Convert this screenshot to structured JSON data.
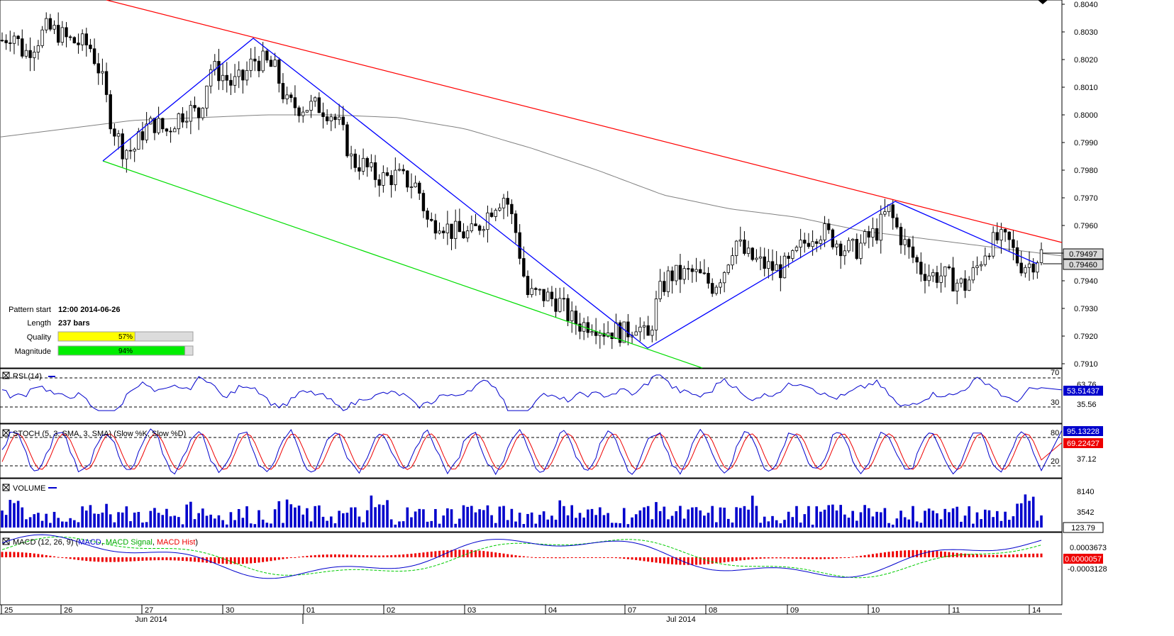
{
  "pattern_info": {
    "start_label": "Pattern start",
    "start_value": "12:00 2014-06-26",
    "length_label": "Length",
    "length_value": "237 bars",
    "quality_label": "Quality",
    "quality_value": "57%",
    "quality_pct": 57,
    "magnitude_label": "Magnitude",
    "magnitude_value": "94%",
    "magnitude_pct": 94
  },
  "colors": {
    "resistance": "#ff0000",
    "support": "#00dd00",
    "zigzag": "#0000ff",
    "sma": "#808080",
    "quality": "#ffff00",
    "magnitude": "#00ee00",
    "badge_blue": "#0000cc",
    "badge_red": "#ee0000"
  },
  "main_panel": {
    "price_labels": [
      "0.8040",
      "0.8030",
      "0.8020",
      "0.8010",
      "0.8000",
      "0.7990",
      "0.7980",
      "0.7970",
      "0.7960",
      "0.7950",
      "0.7940",
      "0.7930",
      "0.7920",
      "0.7910"
    ],
    "price_min": 0.791,
    "price_max": 0.804,
    "current_price": "0.79497",
    "secondary_price": "0.79460"
  },
  "rsi_panel": {
    "title": "RSI (14)",
    "levels": [
      "70",
      "30"
    ],
    "value_labels": [
      "63.76",
      "35.56"
    ],
    "current": "53.51437"
  },
  "stoch_panel": {
    "title": "STOCH (5, 3, SMA, 3, SMA) (Slow %K, Slow %D)",
    "levels": [
      "80",
      "20"
    ],
    "value_label": "37.12",
    "current_k": "95.13228",
    "current_d": "69.22427"
  },
  "volume_panel": {
    "title": "VOLUME",
    "value_labels": [
      "8140",
      "3542"
    ],
    "current": "123.79"
  },
  "macd_panel": {
    "title_prefix": "MACD (12, 26, 9) (",
    "macd_label": "MACD",
    "signal_label": "MACD Signal",
    "hist_label": "MACD Hist",
    "value_top": "0.0003673",
    "value_bottom": "-0.0003128",
    "current": "0.0000057"
  },
  "x_axis": {
    "day_labels": [
      "25",
      "26",
      "27",
      "30",
      "01",
      "02",
      "03",
      "04",
      "07",
      "08",
      "09",
      "10",
      "11",
      "14"
    ],
    "month_labels": [
      "Jun 2014",
      "Jul 2014"
    ]
  },
  "chart_data": {
    "type": "candlestick",
    "title": "",
    "price_range": [
      0.791,
      0.804
    ],
    "pattern": {
      "resistance_line": [
        [
          0.8042,
          "start"
        ],
        [
          0.79545,
          "end"
        ]
      ],
      "support_line": [
        [
          0.79835,
          "2014-06-26"
        ],
        [
          0.791,
          "2014-07-07"
        ]
      ],
      "zigzag_points": [
        0.79835,
        0.80275,
        0.8008,
        0.79155,
        0.7969,
        0.7948
      ]
    },
    "candles_close_trend": [
      0.8027,
      0.803,
      0.8022,
      0.8026,
      0.8031,
      0.803,
      0.8027,
      0.8026,
      0.8025,
      0.8015,
      0.7997,
      0.7988,
      0.7987,
      0.7995,
      0.7997,
      0.7994,
      0.7999,
      0.8002,
      0.8,
      0.8017,
      0.8015,
      0.8011,
      0.8013,
      0.802,
      0.8019,
      0.8016,
      0.8004,
      0.8003,
      0.8003,
      0.8003,
      0.8001,
      0.7995,
      0.7983,
      0.7982,
      0.7978,
      0.7977,
      0.7978,
      0.7976,
      0.7974,
      0.796,
      0.7962,
      0.7958,
      0.7957,
      0.7957,
      0.7962,
      0.7968,
      0.7971,
      0.7957,
      0.7935,
      0.7935,
      0.7934,
      0.7932,
      0.7926,
      0.7924,
      0.7925,
      0.7922,
      0.7922,
      0.7921,
      0.7925,
      0.7918,
      0.7935,
      0.7942,
      0.7942,
      0.7943,
      0.7941,
      0.7938,
      0.7944,
      0.7955,
      0.7949,
      0.7947,
      0.7945,
      0.7944,
      0.7946,
      0.7952,
      0.7957,
      0.7958,
      0.7955,
      0.7952,
      0.7951,
      0.7955,
      0.7958,
      0.7966,
      0.7957,
      0.795,
      0.7944,
      0.7942,
      0.7942,
      0.794,
      0.7938,
      0.7944,
      0.7952,
      0.7955,
      0.7954,
      0.7946,
      0.7946,
      0.795
    ],
    "sma_trend": [
      0.7992,
      0.7995,
      0.7998,
      0.7999,
      0.8,
      0.8,
      0.7999,
      0.7995,
      0.7988,
      0.798,
      0.7971,
      0.7966,
      0.7963,
      0.7958,
      0.7955,
      0.7952,
      0.7949
    ],
    "rsi_current": 53.51437,
    "stoch_current": [
      95.13228,
      69.22427
    ],
    "volume_current": 123.79,
    "macd_current": 5.7e-06
  }
}
